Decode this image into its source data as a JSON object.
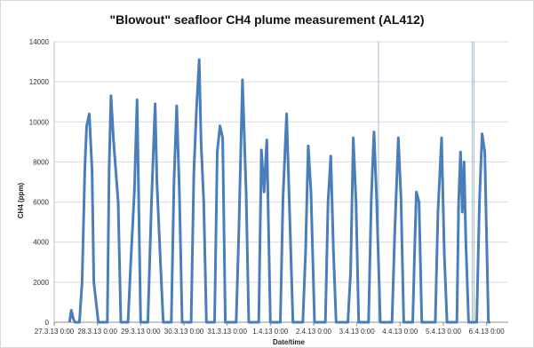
{
  "chart_data": {
    "type": "line",
    "title": "\"Blowout\" seafloor CH4 plume measurement (AL412)",
    "xlabel": "Date/time",
    "ylabel": "CH4 (ppm)",
    "ylim": [
      0,
      14000
    ],
    "yticks": [
      0,
      2000,
      4000,
      6000,
      8000,
      10000,
      12000,
      14000
    ],
    "xlim": [
      "2013-03-27 00:00",
      "2013-04-06 12:00"
    ],
    "xtick_labels": [
      "27.3.13 0:00",
      "28.3.13 0:00",
      "29.3.13 0:00",
      "30.3.13 0:00",
      "31.3.13 0:00",
      "1.4.13 0:00",
      "2.4.13 0:00",
      "3.4.13 0:00",
      "4.4.13 0:00",
      "5.4.13 0:00",
      "6.4.13 0:00"
    ],
    "grid": {
      "horizontal": true,
      "vertical": false
    },
    "legend": "none",
    "colors": {
      "series": "#4a7ebb",
      "grid": "#d9d9d9"
    },
    "series": [
      {
        "x": [
          "2013-03-27 08:30",
          "2013-03-27 09:30",
          "2013-03-27 10:30",
          "2013-03-27 11:30",
          "2013-03-27 14:00",
          "2013-03-27 15:30",
          "2013-03-27 17:00",
          "2013-03-27 18:00",
          "2013-03-27 19:30",
          "2013-03-27 21:00",
          "2013-03-27 22:00",
          "2013-03-28 00:30",
          "2013-03-28 05:30",
          "2013-03-28 06:30",
          "2013-03-28 07:30",
          "2013-03-28 09:00",
          "2013-03-28 11:30",
          "2013-03-28 13:00",
          "2013-03-28 17:00",
          "2013-03-28 18:30",
          "2013-03-28 20:30",
          "2013-03-28 22:00",
          "2013-03-29 00:00",
          "2013-03-29 04:00",
          "2013-03-29 06:00",
          "2013-03-29 08:00",
          "2013-03-29 09:00",
          "2013-03-29 11:00",
          "2013-03-29 12:30",
          "2013-03-29 17:00",
          "2013-03-29 18:30",
          "2013-03-29 20:00",
          "2013-03-29 21:30",
          "2013-03-29 23:00",
          "2013-03-30 04:00",
          "2013-03-30 05:30",
          "2013-03-30 07:00",
          "2013-03-30 08:30",
          "2013-03-30 09:30",
          "2013-03-30 11:00",
          "2013-03-30 12:30",
          "2013-03-30 17:00",
          "2013-03-30 18:30",
          "2013-03-30 20:00",
          "2013-03-30 21:30",
          "2013-03-30 23:00",
          "2013-03-31 05:00",
          "2013-03-31 06:30",
          "2013-03-31 08:30",
          "2013-03-31 10:30",
          "2013-03-31 12:00",
          "2013-03-31 17:30",
          "2013-03-31 19:00",
          "2013-03-31 20:30",
          "2013-03-31 22:00",
          "2013-04-01 00:00",
          "2013-04-01 05:30",
          "2013-04-01 07:00",
          "2013-04-01 09:00",
          "2013-04-01 10:30",
          "2013-04-01 12:30",
          "2013-04-01 18:00",
          "2013-04-01 19:30",
          "2013-04-01 21:00",
          "2013-04-01 22:30",
          "2013-04-02 00:30",
          "2013-04-02 06:30",
          "2013-04-02 08:00",
          "2013-04-02 09:30",
          "2013-04-02 11:00",
          "2013-04-02 12:30",
          "2013-04-02 19:00",
          "2013-04-02 20:30",
          "2013-04-02 22:00",
          "2013-04-02 23:30",
          "2013-04-03 01:00",
          "2013-04-03 06:30",
          "2013-04-03 08:00",
          "2013-04-03 09:30",
          "2013-04-03 11:00",
          "2013-04-03 13:00",
          "2013-04-03 19:30",
          "2013-04-03 21:00",
          "2013-04-03 23:00",
          "2013-04-04 00:30",
          "2013-04-04 02:00",
          "2013-04-04 07:00",
          "2013-04-04 08:00",
          "2013-04-04 09:00",
          "2013-04-04 10:30",
          "2013-04-04 12:00",
          "2013-04-04 19:30",
          "2013-04-04 21:00",
          "2013-04-04 23:00",
          "2013-04-05 00:30",
          "2013-04-05 02:00",
          "2013-04-05 07:30",
          "2013-04-05 08:30",
          "2013-04-05 09:30",
          "2013-04-05 10:30",
          "2013-04-05 11:30",
          "2013-04-05 12:30",
          "2013-04-05 14:00",
          "2013-04-05 18:30",
          "2013-04-05 20:00",
          "2013-04-05 21:30",
          "2013-04-05 23:00",
          "2013-04-06 01:00",
          "2013-04-06 02:00"
        ],
        "y": [
          0,
          600,
          200,
          0,
          0,
          2000,
          7700,
          9800,
          10400,
          7600,
          2000,
          0,
          0,
          7600,
          11300,
          9000,
          6000,
          0,
          0,
          3000,
          6500,
          11100,
          0,
          0,
          6000,
          10900,
          7000,
          3000,
          0,
          0,
          7000,
          10800,
          6500,
          0,
          0,
          7500,
          10700,
          13100,
          9000,
          6000,
          0,
          0,
          8500,
          9800,
          9200,
          0,
          0,
          4500,
          12100,
          6500,
          0,
          0,
          8600,
          6500,
          9100,
          0,
          0,
          6200,
          10400,
          6000,
          0,
          0,
          3500,
          8800,
          6500,
          0,
          0,
          6000,
          8300,
          3500,
          0,
          0,
          2500,
          9200,
          6000,
          0,
          0,
          6200,
          9500,
          6000,
          0,
          0,
          4500,
          9200,
          6200,
          0,
          0,
          3500,
          6500,
          6000,
          0,
          0,
          5500,
          9200,
          3500,
          0,
          0,
          6000,
          8500,
          5500,
          8000,
          4000,
          0,
          0,
          6000,
          9400,
          8500,
          0,
          0
        ]
      }
    ],
    "reference_lines": [
      "2013-04-03 12:00",
      "2013-04-05 16:00",
      "2013-04-05 17:00"
    ]
  }
}
